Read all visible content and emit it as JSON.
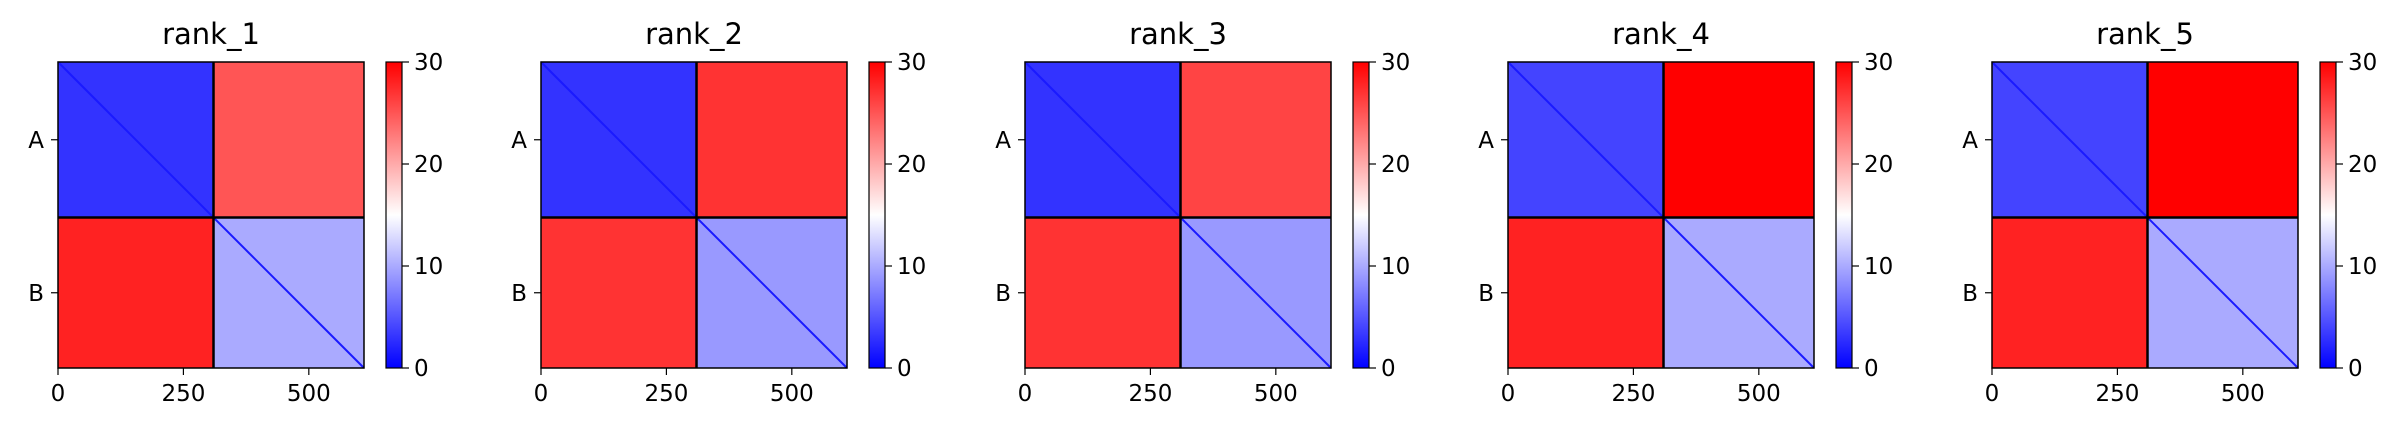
{
  "chart_data": [
    {
      "type": "heatmap",
      "title": "rank_1",
      "x_ticks": [
        0,
        250,
        500
      ],
      "y_tick_labels": [
        "A",
        "B"
      ],
      "chains": [
        {
          "name": "A",
          "length": 310
        },
        {
          "name": "B",
          "length": 300
        }
      ],
      "colorbar": {
        "min": 0,
        "max": 30,
        "ticks": [
          0,
          10,
          20,
          30
        ],
        "colormap": "bwr"
      },
      "blocks": {
        "AA": 3,
        "AB": 25,
        "BA": 28,
        "BB": 10
      }
    },
    {
      "type": "heatmap",
      "title": "rank_2",
      "x_ticks": [
        0,
        250,
        500
      ],
      "y_tick_labels": [
        "A",
        "B"
      ],
      "chains": [
        {
          "name": "A",
          "length": 310
        },
        {
          "name": "B",
          "length": 300
        }
      ],
      "colorbar": {
        "min": 0,
        "max": 30,
        "ticks": [
          0,
          10,
          20,
          30
        ],
        "colormap": "bwr"
      },
      "blocks": {
        "AA": 3,
        "AB": 27,
        "BA": 27,
        "BB": 9
      }
    },
    {
      "type": "heatmap",
      "title": "rank_3",
      "x_ticks": [
        0,
        250,
        500
      ],
      "y_tick_labels": [
        "A",
        "B"
      ],
      "chains": [
        {
          "name": "A",
          "length": 310
        },
        {
          "name": "B",
          "length": 300
        }
      ],
      "colorbar": {
        "min": 0,
        "max": 30,
        "ticks": [
          0,
          10,
          20,
          30
        ],
        "colormap": "bwr"
      },
      "blocks": {
        "AA": 3,
        "AB": 26,
        "BA": 27,
        "BB": 9
      }
    },
    {
      "type": "heatmap",
      "title": "rank_4",
      "x_ticks": [
        0,
        250,
        500
      ],
      "y_tick_labels": [
        "A",
        "B"
      ],
      "chains": [
        {
          "name": "A",
          "length": 310
        },
        {
          "name": "B",
          "length": 300
        }
      ],
      "colorbar": {
        "min": 0,
        "max": 30,
        "ticks": [
          0,
          10,
          20,
          30
        ],
        "colormap": "bwr"
      },
      "blocks": {
        "AA": 4,
        "AB": 30,
        "BA": 28,
        "BB": 10
      }
    },
    {
      "type": "heatmap",
      "title": "rank_5",
      "x_ticks": [
        0,
        250,
        500
      ],
      "y_tick_labels": [
        "A",
        "B"
      ],
      "chains": [
        {
          "name": "A",
          "length": 310
        },
        {
          "name": "B",
          "length": 300
        }
      ],
      "colorbar": {
        "min": 0,
        "max": 30,
        "ticks": [
          0,
          10,
          20,
          30
        ],
        "colormap": "bwr"
      },
      "blocks": {
        "AA": 4,
        "AB": 30,
        "BA": 28,
        "BB": 10
      }
    }
  ]
}
